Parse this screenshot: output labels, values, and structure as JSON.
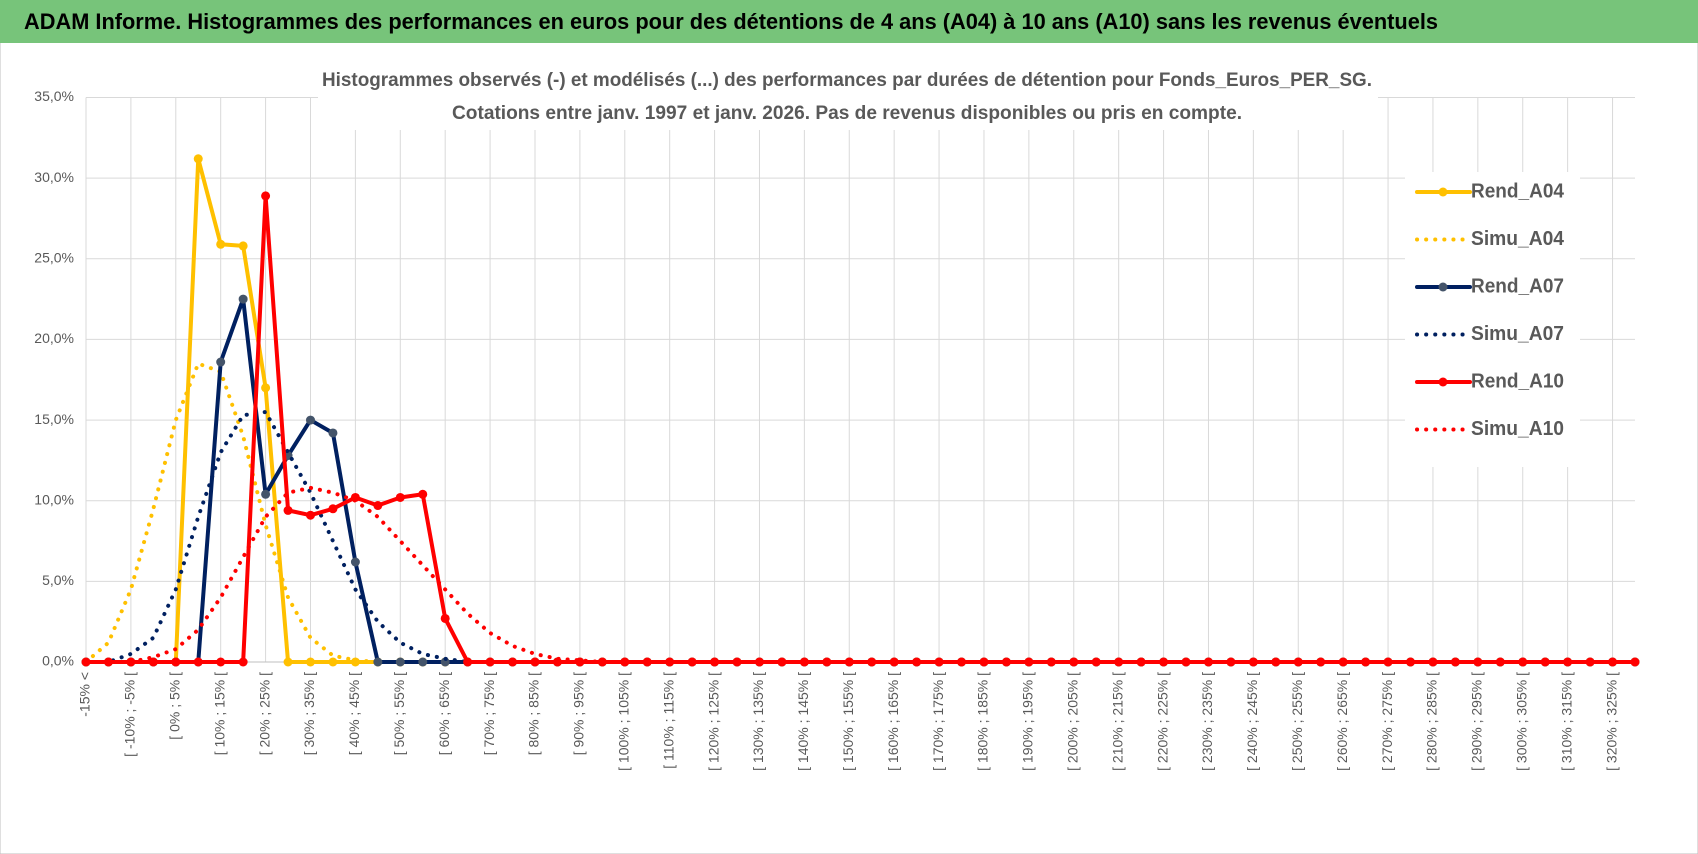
{
  "header": {
    "title": "ADAM Informe. Histogrammes des performances en euros pour des détentions de 4 ans (A04) à 10 ans (A10) sans les revenus éventuels"
  },
  "chart_data": {
    "type": "line",
    "title": "Histogrammes observés (-) et modélisés (...) des performances par durées de détention pour Fonds_Euros_PER_SG.",
    "subtitle": "Cotations entre janv. 1997 et janv. 2026. Pas de revenus disponibles ou pris en compte.",
    "categories": [
      "-15% <",
      null,
      "[ -10% ; -5% [",
      null,
      "[ 0% ; 5% [",
      null,
      "[ 10% ; 15% [",
      null,
      "[ 20% ; 25% [",
      null,
      "[ 30% ; 35% [",
      null,
      "[ 40% ; 45% [",
      null,
      "[ 50% ; 55% [",
      null,
      "[ 60% ; 65% [",
      null,
      "[ 70% ; 75% [",
      null,
      "[ 80% ; 85% [",
      null,
      "[ 90% ; 95% [",
      null,
      "[ 100% ; 105% [",
      null,
      "[ 110% ; 115% [",
      null,
      "[ 120% ; 125% [",
      null,
      "[ 130% ; 135% [",
      null,
      "[ 140% ; 145% [",
      null,
      "[ 150% ; 155% [",
      null,
      "[ 160% ; 165% [",
      null,
      "[ 170% ; 175% [",
      null,
      "[ 180% ; 185% [",
      null,
      "[ 190% ; 195% [",
      null,
      "[ 200% ; 205% [",
      null,
      "[ 210% ; 215% [",
      null,
      "[ 220% ; 225% [",
      null,
      "[ 230% ; 235% [",
      null,
      "[ 240% ; 245% [",
      null,
      "[ 250% ; 255% [",
      null,
      "[ 260% ; 265% [",
      null,
      "[ 270% ; 275% [",
      null,
      "[ 280% ; 285% [",
      null,
      "[ 290% ; 295% [",
      null,
      "[ 300% ; 305% [",
      null,
      "[ 310% ; 315% [",
      null,
      "[ 320% ; 325% [",
      null
    ],
    "series": [
      {
        "name": "Rend_A04",
        "color": "#ffc000",
        "style": "solid",
        "values": [
          0,
          0,
          0,
          0,
          0,
          31.2,
          25.9,
          25.8,
          17.0,
          0,
          0,
          0,
          0,
          0,
          0,
          0,
          0,
          0,
          0,
          0,
          0,
          0,
          0,
          0,
          0,
          0,
          0,
          0,
          0,
          0,
          0,
          0,
          0,
          0,
          0,
          0,
          0,
          0,
          0,
          0,
          0,
          0,
          0,
          0,
          0,
          0,
          0,
          0,
          0,
          0,
          0,
          0,
          0,
          0,
          0,
          0,
          0,
          0,
          0,
          0,
          0,
          0,
          0,
          0,
          0,
          0,
          0,
          0,
          0,
          0
        ]
      },
      {
        "name": "Simu_A04",
        "color": "#ffc000",
        "style": "dotted",
        "values": [
          0,
          1.2,
          4.5,
          9.5,
          15.0,
          18.5,
          18.0,
          14.0,
          8.5,
          4.0,
          1.5,
          0.4,
          0.1,
          0,
          0,
          0,
          0,
          0,
          0,
          0,
          0,
          0,
          0,
          0,
          0,
          0,
          0,
          0,
          0,
          0,
          0,
          0,
          0,
          0,
          0,
          0,
          0,
          0,
          0,
          0,
          0,
          0,
          0,
          0,
          0,
          0,
          0,
          0,
          0,
          0,
          0,
          0,
          0,
          0,
          0,
          0,
          0,
          0,
          0,
          0,
          0,
          0,
          0,
          0,
          0,
          0,
          0,
          0,
          0,
          0
        ]
      },
      {
        "name": "Rend_A07",
        "color": "#002060",
        "style": "solid",
        "values": [
          0,
          0,
          0,
          0,
          0,
          0,
          18.6,
          22.5,
          10.4,
          12.8,
          15.0,
          14.2,
          6.2,
          0,
          0,
          0,
          0,
          0,
          0,
          0,
          0,
          0,
          0,
          0,
          0,
          0,
          0,
          0,
          0,
          0,
          0,
          0,
          0,
          0,
          0,
          0,
          0,
          0,
          0,
          0,
          0,
          0,
          0,
          0,
          0,
          0,
          0,
          0,
          0,
          0,
          0,
          0,
          0,
          0,
          0,
          0,
          0,
          0,
          0,
          0,
          0,
          0,
          0,
          0,
          0,
          0,
          0,
          0,
          0,
          0
        ]
      },
      {
        "name": "Simu_A07",
        "color": "#002060",
        "style": "dotted",
        "values": [
          0,
          0,
          0.5,
          1.5,
          4.5,
          9.0,
          13.0,
          15.3,
          15.5,
          13.0,
          10.5,
          7.5,
          4.5,
          2.5,
          1.2,
          0.5,
          0.2,
          0,
          0,
          0,
          0,
          0,
          0,
          0,
          0,
          0,
          0,
          0,
          0,
          0,
          0,
          0,
          0,
          0,
          0,
          0,
          0,
          0,
          0,
          0,
          0,
          0,
          0,
          0,
          0,
          0,
          0,
          0,
          0,
          0,
          0,
          0,
          0,
          0,
          0,
          0,
          0,
          0,
          0,
          0,
          0,
          0,
          0,
          0,
          0,
          0,
          0,
          0,
          0,
          0
        ]
      },
      {
        "name": "Rend_A10",
        "color": "#ff0000",
        "style": "solid",
        "values": [
          0,
          0,
          0,
          0,
          0,
          0,
          0,
          0,
          28.9,
          9.4,
          9.1,
          9.5,
          10.2,
          9.7,
          10.2,
          10.4,
          2.7,
          0,
          0,
          0,
          0,
          0,
          0,
          0,
          0,
          0,
          0,
          0,
          0,
          0,
          0,
          0,
          0,
          0,
          0,
          0,
          0,
          0,
          0,
          0,
          0,
          0,
          0,
          0,
          0,
          0,
          0,
          0,
          0,
          0,
          0,
          0,
          0,
          0,
          0,
          0,
          0,
          0,
          0,
          0,
          0,
          0,
          0,
          0,
          0,
          0,
          0,
          0,
          0,
          0
        ]
      },
      {
        "name": "Simu_A10",
        "color": "#ff0000",
        "style": "dotted",
        "values": [
          0,
          0,
          0,
          0.3,
          0.8,
          2.0,
          4.0,
          6.5,
          9.0,
          10.5,
          10.8,
          10.5,
          10.0,
          9.0,
          7.5,
          6.0,
          4.5,
          3.0,
          1.8,
          1.0,
          0.5,
          0.2,
          0.1,
          0,
          0,
          0,
          0,
          0,
          0,
          0,
          0,
          0,
          0,
          0,
          0,
          0,
          0,
          0,
          0,
          0,
          0,
          0,
          0,
          0,
          0,
          0,
          0,
          0,
          0,
          0,
          0,
          0,
          0,
          0,
          0,
          0,
          0,
          0,
          0,
          0,
          0,
          0,
          0,
          0,
          0,
          0,
          0,
          0,
          0,
          0
        ]
      }
    ],
    "ylim": [
      0,
      35
    ],
    "yticks": [
      {
        "value": 0,
        "label": "0,0%"
      },
      {
        "value": 5,
        "label": "5,0%"
      },
      {
        "value": 10,
        "label": "10,0%"
      },
      {
        "value": 15,
        "label": "15,0%"
      },
      {
        "value": 20,
        "label": "20,0%"
      },
      {
        "value": 25,
        "label": "25,0%"
      },
      {
        "value": 30,
        "label": "30,0%"
      },
      {
        "value": 35,
        "label": "35,0%"
      }
    ],
    "grid": true,
    "legend": "right"
  }
}
